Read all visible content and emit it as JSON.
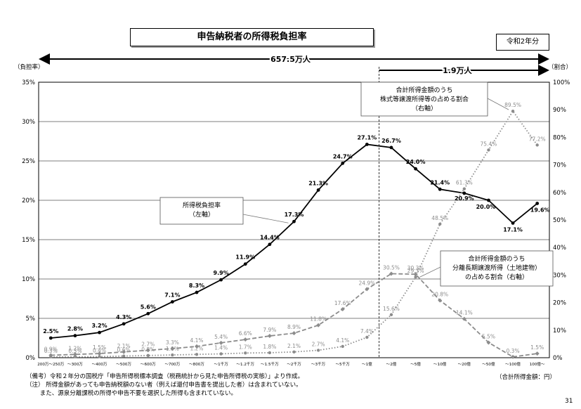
{
  "title": "申告納税者の所得税負担率",
  "year_label": "令和2年分",
  "page_number": "31",
  "x_unit_label": "（合計所得金額：円）",
  "notes": [
    "（備考）令和２年分の国税庁「申告所得税標本調査（税務統計から見た申告所得税の実態）」より作成。",
    "（注） 所得金額があっても申告納税額のない者（例えば還付申告書を提出した者）は含まれていない。",
    "　　 また、源泉分離課税の所得や申告不要を選択した所得も含まれていない。"
  ],
  "chart_data": {
    "type": "line",
    "title": "申告納税者の所得税負担率",
    "left_axis_label": "（負担率）",
    "right_axis_label": "（割合）",
    "left_ylim": [
      0,
      35
    ],
    "right_ylim": [
      0,
      100
    ],
    "left_ticks": [
      "0%",
      "5%",
      "10%",
      "15%",
      "20%",
      "25%",
      "30%",
      "35%"
    ],
    "right_ticks": [
      "0%",
      "10%",
      "20%",
      "30%",
      "40%",
      "50%",
      "60%",
      "70%",
      "80%",
      "90%",
      "100%"
    ],
    "grid": true,
    "categories": [
      "200万～250万",
      "～300万",
      "～400万",
      "～500万",
      "～600万",
      "～700万",
      "～800万",
      "～1千万",
      "～1.2千万",
      "～1.5千万",
      "～2千万",
      "～3千万",
      "～5千万",
      "～1億",
      "～2億",
      "～5億",
      "～10億",
      "～20億",
      "～50億",
      "～100億",
      "100億～"
    ],
    "arrows": {
      "total_label": "657.5万人",
      "high_label": "1.9万人",
      "divider_after_index": 13
    },
    "series": [
      {
        "name": "所得税負担率",
        "axis": "left",
        "color": "#000000",
        "style": "solid",
        "values": [
          2.5,
          2.8,
          3.2,
          4.3,
          5.6,
          7.1,
          8.3,
          9.9,
          11.9,
          14.4,
          17.3,
          21.3,
          24.7,
          27.1,
          26.7,
          24.0,
          21.4,
          20.9,
          20.0,
          17.1,
          19.6
        ],
        "labels": [
          "2.5%",
          "2.8%",
          "3.2%",
          "4.3%",
          "5.6%",
          "7.1%",
          "8.3%",
          "9.9%",
          "11.9%",
          "14.4%",
          "17.3%",
          "21.3%",
          "24.7%",
          "27.1%",
          "26.7%",
          "24.0%",
          "21.4%",
          "20.9%",
          "20.0%",
          "17.1%",
          "19.6%"
        ],
        "callout": [
          "所得税負担率",
          "（左軸）"
        ]
      },
      {
        "name": "分離長期譲渡所得（土地建物）の占める割合",
        "axis": "right",
        "color": "#8c8c8c",
        "style": "dashed",
        "values": [
          0.9,
          1.2,
          1.5,
          2.1,
          2.7,
          3.3,
          4.1,
          5.4,
          6.6,
          7.9,
          8.9,
          11.8,
          17.6,
          24.9,
          30.5,
          30.3,
          20.8,
          14.1,
          5.5,
          0.3,
          1.5
        ],
        "labels": [
          "0.9%",
          "1.2%",
          "1.5%",
          "2.1%",
          "2.7%",
          "3.3%",
          "4.1%",
          "5.4%",
          "6.6%",
          "7.9%",
          "8.9%",
          "11.8%",
          "17.6%",
          "24.9%",
          "30.5%",
          "30.3%",
          "20.8%",
          "14.1%",
          "5.5%",
          "0.3%",
          "1.5%"
        ],
        "callout": [
          "合計所得金額のうち",
          "分離長期譲渡所得（土地建物）",
          "の占める割合（右軸）"
        ]
      },
      {
        "name": "株式等譲渡所得等の占める割合",
        "axis": "right",
        "color": "#8c8c8c",
        "style": "dotted",
        "values": [
          0.3,
          0.3,
          0.4,
          0.6,
          0.8,
          1.0,
          1.2,
          1.4,
          1.7,
          1.8,
          2.1,
          2.7,
          4.1,
          7.4,
          15.6,
          29.3,
          48.5,
          61.3,
          75.4,
          89.5,
          77.2
        ],
        "labels": [
          "0.3%",
          "0.3%",
          "0.4%",
          "0.6%",
          "0.8%",
          "1.0%",
          "1.2%",
          "1.4%",
          "1.7%",
          "1.8%",
          "2.1%",
          "2.7%",
          "4.1%",
          "7.4%",
          "15.6%",
          "29.3%",
          "48.5%",
          "61.3%",
          "75.4%",
          "89.5%",
          "77.2%"
        ],
        "callout": [
          "合計所得金額のうち",
          "株式等譲渡所得等の占める割合",
          "（右軸）"
        ]
      }
    ]
  }
}
